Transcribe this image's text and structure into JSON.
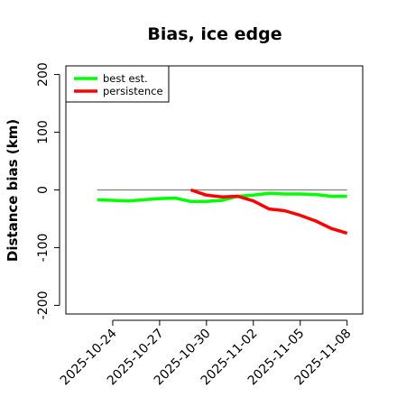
{
  "chart_data": {
    "type": "line",
    "title": "Bias, ice edge",
    "xlabel": "",
    "ylabel": "Distance bias (km)",
    "ylim": [
      -215,
      215
    ],
    "yticks": [
      -200,
      -100,
      0,
      100,
      200
    ],
    "ytick_labels": [
      "-200",
      "-100",
      "0",
      "100",
      "200"
    ],
    "xlim": [
      "2025-10-21",
      "2025-11-09"
    ],
    "xticks": [
      "2025-10-24",
      "2025-10-27",
      "2025-10-30",
      "2025-11-02",
      "2025-11-05",
      "2025-11-08"
    ],
    "zero_line": true,
    "grid": false,
    "legend": {
      "position": "top-left",
      "entries": [
        "best est.",
        "persistence"
      ]
    },
    "series": [
      {
        "name": "best est.",
        "color": "#00ff00",
        "points": [
          {
            "x": "2025-10-23",
            "y": -17
          },
          {
            "x": "2025-10-24",
            "y": -18
          },
          {
            "x": "2025-10-25",
            "y": -19
          },
          {
            "x": "2025-10-26",
            "y": -17
          },
          {
            "x": "2025-10-27",
            "y": -15
          },
          {
            "x": "2025-10-28",
            "y": -14
          },
          {
            "x": "2025-10-29",
            "y": -20
          },
          {
            "x": "2025-10-30",
            "y": -20
          },
          {
            "x": "2025-10-31",
            "y": -18
          },
          {
            "x": "2025-11-01",
            "y": -11
          },
          {
            "x": "2025-11-02",
            "y": -9
          },
          {
            "x": "2025-11-03",
            "y": -6
          },
          {
            "x": "2025-11-04",
            "y": -7
          },
          {
            "x": "2025-11-05",
            "y": -7
          },
          {
            "x": "2025-11-06",
            "y": -8
          },
          {
            "x": "2025-11-07",
            "y": -11
          },
          {
            "x": "2025-11-08",
            "y": -11
          }
        ]
      },
      {
        "name": "persistence",
        "color": "#ff0000",
        "points": [
          {
            "x": "2025-10-29",
            "y": 0
          },
          {
            "x": "2025-10-30",
            "y": -9
          },
          {
            "x": "2025-10-31",
            "y": -12
          },
          {
            "x": "2025-11-01",
            "y": -11
          },
          {
            "x": "2025-11-02",
            "y": -19
          },
          {
            "x": "2025-11-03",
            "y": -33
          },
          {
            "x": "2025-11-04",
            "y": -36
          },
          {
            "x": "2025-11-05",
            "y": -44
          },
          {
            "x": "2025-11-06",
            "y": -54
          },
          {
            "x": "2025-11-07",
            "y": -67
          },
          {
            "x": "2025-11-08",
            "y": -75
          }
        ]
      }
    ]
  }
}
